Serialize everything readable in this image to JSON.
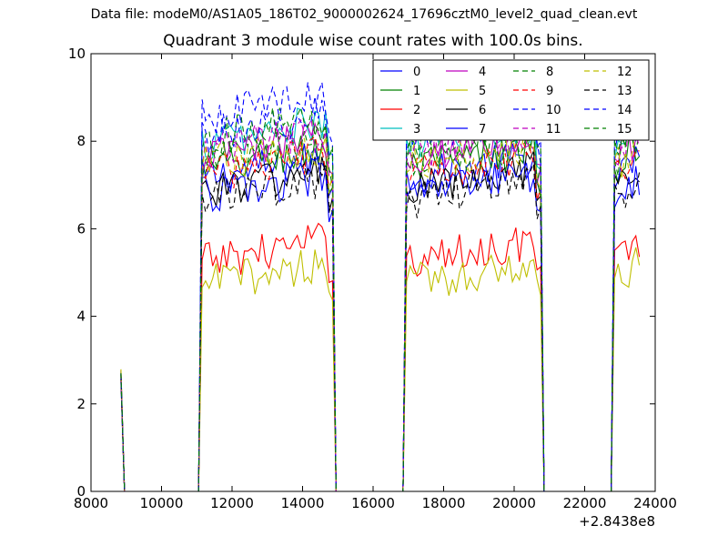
{
  "suptitle": "Data file: modeM0/AS1A05_186T02_9000002624_17696cztM0_level2_quad_clean.evt",
  "chart_data": {
    "type": "line",
    "title": "Quadrant 3 module wise count rates with 100.0s bins.",
    "xlabel": "",
    "ylabel": "",
    "x_offset_label": "+2.8438e8",
    "xlim": [
      8000,
      24000
    ],
    "ylim": [
      0,
      10
    ],
    "xticks": [
      8000,
      10000,
      12000,
      14000,
      16000,
      18000,
      20000,
      22000,
      24000
    ],
    "yticks": [
      0,
      2,
      4,
      6,
      8,
      10
    ],
    "grid": false,
    "legend_position": "top-right",
    "legend_columns": 4,
    "bin_width_s": 100,
    "active_intervals": [
      [
        8850,
        8900
      ],
      [
        11150,
        14850
      ],
      [
        16950,
        20750
      ],
      [
        22850,
        23600
      ]
    ],
    "series": [
      {
        "name": "0",
        "color": "#0000ff",
        "style": "solid",
        "level": 7.4
      },
      {
        "name": "1",
        "color": "#008000",
        "style": "solid",
        "level": 7.6
      },
      {
        "name": "2",
        "color": "#ff0000",
        "style": "solid",
        "level": 5.5
      },
      {
        "name": "3",
        "color": "#00bfbf",
        "style": "solid",
        "level": 8.2
      },
      {
        "name": "4",
        "color": "#bf00bf",
        "style": "solid",
        "level": 7.9
      },
      {
        "name": "5",
        "color": "#bfbf00",
        "style": "solid",
        "level": 5.0
      },
      {
        "name": "6",
        "color": "#000000",
        "style": "solid",
        "level": 7.1
      },
      {
        "name": "7",
        "color": "#0000ff",
        "style": "solid",
        "level": 7.0
      },
      {
        "name": "8",
        "color": "#008000",
        "style": "dashed",
        "level": 7.8
      },
      {
        "name": "9",
        "color": "#ff0000",
        "style": "dashed",
        "level": 7.5
      },
      {
        "name": "10",
        "color": "#0000ff",
        "style": "dashed",
        "level": 8.4
      },
      {
        "name": "11",
        "color": "#bf00bf",
        "style": "dashed",
        "level": 8.0
      },
      {
        "name": "12",
        "color": "#bfbf00",
        "style": "dashed",
        "level": 7.7
      },
      {
        "name": "13",
        "color": "#000000",
        "style": "dashed",
        "level": 6.9
      },
      {
        "name": "14",
        "color": "#0000ff",
        "style": "dashed",
        "level": 8.8
      },
      {
        "name": "15",
        "color": "#008000",
        "style": "dashed",
        "level": 8.3
      }
    ]
  }
}
